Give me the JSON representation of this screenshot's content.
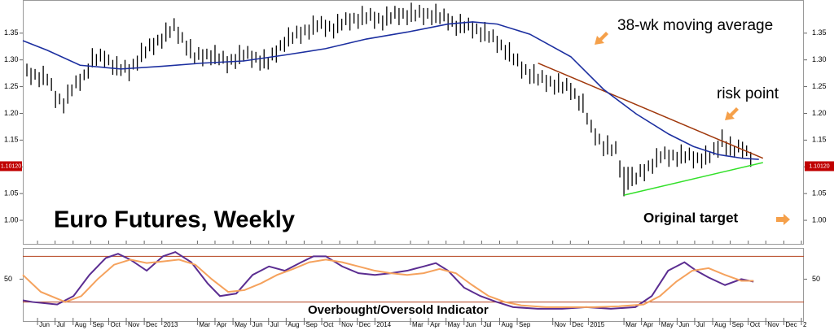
{
  "chart_data": [
    {
      "type": "ohlc",
      "title": "Euro Futures, Weekly",
      "x": [
        1,
        2,
        3,
        4,
        5,
        6,
        7,
        8,
        9,
        10,
        11,
        12,
        13,
        14,
        15,
        16,
        17,
        18,
        19,
        20,
        21,
        22,
        23,
        24,
        25,
        26,
        27,
        28,
        29,
        30,
        31,
        32,
        33,
        34,
        35,
        36,
        37,
        38,
        39,
        40,
        41,
        42,
        43,
        44,
        45,
        46,
        47,
        48,
        49,
        50,
        51,
        52,
        53,
        54,
        55,
        56,
        57,
        58,
        59,
        60,
        61,
        62,
        63,
        64,
        65,
        66,
        67,
        68,
        69,
        70,
        71,
        72,
        73,
        74,
        75,
        76,
        77,
        78,
        79,
        80,
        81,
        82,
        83,
        84,
        85,
        86,
        87,
        88,
        89,
        90,
        91,
        92,
        93,
        94,
        95,
        96,
        97,
        98,
        99,
        100,
        101,
        102,
        103,
        104,
        105,
        106,
        107,
        108,
        109,
        110,
        111,
        112,
        113,
        114,
        115,
        116,
        117,
        118,
        119,
        120,
        121,
        122,
        123,
        124,
        125,
        126,
        127,
        128,
        129,
        130,
        131,
        132,
        133,
        134,
        135,
        136,
        137,
        138,
        139,
        140,
        141,
        142,
        143,
        144,
        145,
        146,
        147,
        148,
        149,
        150,
        151,
        152,
        153,
        154,
        155,
        156,
        157,
        158,
        159,
        160,
        161,
        162,
        163,
        164,
        165,
        166,
        167,
        168,
        169,
        170,
        171,
        172,
        173,
        174,
        175,
        176,
        177,
        178
      ],
      "high": [
        1.293,
        1.285,
        1.283,
        1.277,
        1.289,
        1.274,
        1.266,
        1.242,
        1.237,
        1.228,
        1.254,
        1.254,
        1.271,
        1.274,
        1.282,
        1.293,
        1.322,
        1.311,
        1.321,
        1.317,
        1.31,
        1.3,
        1.307,
        1.292,
        1.3,
        1.292,
        1.302,
        1.308,
        1.332,
        1.325,
        1.34,
        1.341,
        1.347,
        1.349,
        1.37,
        1.363,
        1.378,
        1.362,
        1.352,
        1.336,
        1.339,
        1.314,
        1.324,
        1.32,
        1.321,
        1.318,
        1.328,
        1.312,
        1.317,
        1.307,
        1.311,
        1.311,
        1.328,
        1.319,
        1.326,
        1.317,
        1.315,
        1.308,
        1.32,
        1.304,
        1.323,
        1.327,
        1.337,
        1.343,
        1.361,
        1.352,
        1.364,
        1.362,
        1.366,
        1.366,
        1.383,
        1.374,
        1.382,
        1.375,
        1.373,
        1.368,
        1.386,
        1.377,
        1.389,
        1.387,
        1.388,
        1.386,
        1.401,
        1.389,
        1.397,
        1.39,
        1.388,
        1.383,
        1.4,
        1.389,
        1.401,
        1.397,
        1.397,
        1.393,
        1.407,
        1.394,
        1.403,
        1.397,
        1.397,
        1.393,
        1.405,
        1.389,
        1.396,
        1.387,
        1.382,
        1.373,
        1.386,
        1.372,
        1.379,
        1.372,
        1.368,
        1.361,
        1.371,
        1.354,
        1.357,
        1.345,
        1.338,
        1.328,
        1.333,
        1.312,
        1.312,
        1.297,
        1.292,
        1.283,
        1.292,
        1.274,
        1.281,
        1.272,
        1.27,
        1.263,
        1.275,
        1.259,
        1.266,
        1.257,
        1.247,
        1.233,
        1.237,
        1.201,
        1.188,
        1.172,
        1.162,
        1.148,
        1.159,
        1.142,
        1.148,
        1.112,
        1.1,
        1.1,
        1.1,
        1.089,
        1.105,
        1.105,
        1.112,
        1.115,
        1.135,
        1.129,
        1.138,
        1.132,
        1.132,
        1.128,
        1.142,
        1.129,
        1.136,
        1.129,
        1.127,
        1.125,
        1.14,
        1.129,
        1.146,
        1.149,
        1.17,
        1.148,
        1.157,
        1.139,
        1.151,
        1.147,
        1.14,
        1.128
      ],
      "low": [
        1.269,
        1.253,
        1.263,
        1.249,
        1.253,
        1.252,
        1.242,
        1.21,
        1.217,
        1.2,
        1.218,
        1.232,
        1.247,
        1.242,
        1.262,
        1.265,
        1.286,
        1.289,
        1.297,
        1.285,
        1.29,
        1.272,
        1.271,
        1.27,
        1.276,
        1.26,
        1.282,
        1.28,
        1.296,
        1.303,
        1.316,
        1.309,
        1.327,
        1.321,
        1.334,
        1.341,
        1.354,
        1.33,
        1.332,
        1.308,
        1.303,
        1.292,
        1.3,
        1.288,
        1.301,
        1.29,
        1.292,
        1.29,
        1.293,
        1.275,
        1.291,
        1.283,
        1.292,
        1.297,
        1.302,
        1.285,
        1.295,
        1.28,
        1.284,
        1.282,
        1.299,
        1.295,
        1.317,
        1.315,
        1.325,
        1.33,
        1.34,
        1.33,
        1.346,
        1.338,
        1.347,
        1.352,
        1.358,
        1.343,
        1.353,
        1.34,
        1.35,
        1.355,
        1.365,
        1.355,
        1.368,
        1.358,
        1.365,
        1.367,
        1.373,
        1.358,
        1.368,
        1.355,
        1.364,
        1.367,
        1.377,
        1.365,
        1.377,
        1.365,
        1.371,
        1.372,
        1.379,
        1.365,
        1.377,
        1.365,
        1.369,
        1.367,
        1.372,
        1.355,
        1.362,
        1.345,
        1.35,
        1.35,
        1.355,
        1.34,
        1.348,
        1.333,
        1.335,
        1.332,
        1.333,
        1.313,
        1.318,
        1.3,
        1.297,
        1.29,
        1.288,
        1.265,
        1.272,
        1.255,
        1.256,
        1.252,
        1.257,
        1.24,
        1.25,
        1.235,
        1.239,
        1.237,
        1.242,
        1.225,
        1.227,
        1.205,
        1.201,
        1.179,
        1.164,
        1.14,
        1.142,
        1.12,
        1.123,
        1.12,
        1.124,
        1.08,
        1.045,
        1.057,
        1.064,
        1.067,
        1.081,
        1.073,
        1.092,
        1.087,
        1.099,
        1.107,
        1.114,
        1.1,
        1.112,
        1.1,
        1.106,
        1.107,
        1.112,
        1.097,
        1.107,
        1.097,
        1.104,
        1.107,
        1.122,
        1.117,
        1.137,
        1.12,
        1.121,
        1.117,
        1.127,
        1.115,
        1.12,
        1.1
      ],
      "color": "#000000",
      "moving_average": {
        "color": "#1c2fa0",
        "x": [
          0,
          6,
          14,
          24,
          34,
          44,
          54,
          64,
          74,
          84,
          94,
          104,
          110,
          116,
          124,
          134,
          142,
          150,
          158,
          164,
          170,
          176,
          180
        ],
        "values": [
          1.336,
          1.318,
          1.29,
          1.283,
          1.288,
          1.294,
          1.298,
          1.309,
          1.321,
          1.339,
          1.352,
          1.367,
          1.371,
          1.367,
          1.348,
          1.306,
          1.245,
          1.199,
          1.161,
          1.138,
          1.123,
          1.116,
          1.114
        ]
      },
      "trendlines": [
        {
          "color": "#a0380c",
          "x": [
            126,
            181
          ],
          "values": [
            1.294,
            1.116
          ]
        },
        {
          "color": "#33e02a",
          "x": [
            147,
            181
          ],
          "values": [
            1.047,
            1.108
          ]
        }
      ],
      "last_price": {
        "value": 1.1012,
        "label": "1.10120"
      },
      "annotations": [
        "38-wk moving average",
        "risk point",
        "Original target"
      ],
      "xlim": [
        0,
        191
      ],
      "ylim": [
        0.956,
        1.412
      ],
      "yticks": [
        {
          "value": 1,
          "label": "1.00"
        },
        1.05,
        {
          "value": 1.1,
          "label": "1.10"
        },
        1.15,
        {
          "value": 1.2,
          "label": "1.20"
        },
        1.25,
        {
          "value": 1.3,
          "label": "1.30"
        },
        1.35
      ]
    },
    {
      "type": "line",
      "title": "Overbought/Oversold Indicator",
      "series": [
        {
          "color": "#5b2d91",
          "x": [
            0,
            2.4,
            8.4,
            12.4,
            16.3,
            20.3,
            23.3,
            26.3,
            30.3,
            34.3,
            37.3,
            41.2,
            45.2,
            48.2,
            52.2,
            56.2,
            60.2,
            64.1,
            68.1,
            71.1,
            74.1,
            78.1,
            82.1,
            86.1,
            90.0,
            94.0,
            98.0,
            101.0,
            104.0,
            107.9,
            111.9,
            115.9,
            119.9,
            125.9,
            131.9,
            137.8,
            143.8,
            149.8,
            153.8,
            157.8,
            161.8,
            164.7,
            167.7,
            171.7,
            175.7,
            178.7
          ],
          "values": [
            22.2,
            20,
            16.7,
            27.8,
            55.6,
            77.8,
            83.3,
            75.6,
            61.1,
            80,
            85.6,
            72.2,
            44.4,
            27.8,
            31.1,
            55.6,
            66.7,
            61.1,
            72.2,
            80,
            80,
            66.7,
            57.8,
            55.6,
            57.8,
            61.1,
            66.7,
            71.1,
            61.1,
            38.9,
            27.8,
            20,
            13.3,
            11.1,
            11.1,
            13.3,
            11.1,
            13.3,
            27.8,
            61.1,
            72.2,
            61.1,
            52.2,
            42.2,
            50,
            46.7
          ]
        },
        {
          "color": "#f5a25d",
          "x": [
            0,
            4.4,
            10.4,
            14.3,
            18.3,
            22.3,
            26.3,
            30.3,
            34.3,
            38.2,
            42.2,
            46.2,
            50.2,
            54.2,
            58.2,
            62.2,
            66.1,
            70.1,
            74.1,
            78.1,
            82.1,
            86.1,
            90.0,
            94.0,
            98.0,
            101.9,
            105.9,
            109.9,
            113.9,
            117.9,
            121.9,
            127.9,
            133.9,
            139.8,
            145.8,
            151.8,
            155.8,
            159.8,
            163.7,
            167.7,
            171.7,
            175.7,
            178.7
          ],
          "values": [
            55.6,
            33.3,
            20,
            27.8,
            50,
            68.9,
            75.6,
            71.1,
            73.3,
            75.6,
            68.9,
            50,
            33.3,
            35.6,
            44.4,
            55.6,
            63.3,
            72.2,
            75.6,
            72.2,
            66.7,
            61.1,
            57.8,
            55.6,
            57.8,
            63.3,
            57.8,
            42.2,
            27.8,
            20,
            15.6,
            13.3,
            13.3,
            13.3,
            14.4,
            16.7,
            27.8,
            46.7,
            61.1,
            64.4,
            55.6,
            47.8,
            47.8
          ]
        }
      ],
      "reference_lines": [
        80,
        20
      ],
      "reference_color": "#b5421e",
      "xlim": [
        0,
        191
      ],
      "ylim": [
        -5,
        91
      ],
      "yticks": [
        50
      ],
      "xticks": [
        {
          "value": 3.6,
          "label": "Jun"
        },
        {
          "value": 7.9,
          "label": "Jul"
        },
        {
          "value": 12.3,
          "label": "Aug"
        },
        {
          "value": 16.6,
          "label": "Sep"
        },
        {
          "value": 21.0,
          "label": "Oct"
        },
        {
          "value": 25.3,
          "label": "Nov"
        },
        {
          "value": 29.7,
          "label": "Dec"
        },
        {
          "value": 34,
          "label": "2013"
        },
        {
          "value": 42.7,
          "label": "Mar"
        },
        {
          "value": 47.0,
          "label": "Apr"
        },
        {
          "value": 51.4,
          "label": "May"
        },
        {
          "value": 55.7,
          "label": "Jun"
        },
        {
          "value": 60.1,
          "label": "Jul"
        },
        {
          "value": 64.4,
          "label": "Aug"
        },
        {
          "value": 68.8,
          "label": "Sep"
        },
        {
          "value": 73.1,
          "label": "Oct"
        },
        {
          "value": 77.5,
          "label": "Nov"
        },
        {
          "value": 81.8,
          "label": "Dec"
        },
        {
          "value": 86.1,
          "label": "2014"
        },
        {
          "value": 94.8,
          "label": "Mar"
        },
        {
          "value": 99.2,
          "label": "Apr"
        },
        {
          "value": 103.5,
          "label": "May"
        },
        {
          "value": 107.9,
          "label": "Jun"
        },
        {
          "value": 112.2,
          "label": "Jul"
        },
        {
          "value": 116.6,
          "label": "Aug"
        },
        {
          "value": 120.9,
          "label": "Sep"
        },
        {
          "value": 129.6,
          "label": "Nov"
        },
        {
          "value": 133.9,
          "label": "Dec"
        },
        {
          "value": 138.3,
          "label": "2015"
        },
        {
          "value": 147.0,
          "label": "Mar"
        },
        {
          "value": 151.3,
          "label": "Apr"
        },
        {
          "value": 155.7,
          "label": "May"
        },
        {
          "value": 160.0,
          "label": "Jun"
        },
        {
          "value": 164.3,
          "label": "Jul"
        },
        {
          "value": 168.7,
          "label": "Aug"
        },
        {
          "value": 173.0,
          "label": "Sep"
        },
        {
          "value": 177.4,
          "label": "Oct"
        },
        {
          "value": 181.7,
          "label": "Nov"
        },
        {
          "value": 186.1,
          "label": "Dec"
        },
        {
          "value": 190.4,
          "label": "2"
        }
      ]
    }
  ]
}
